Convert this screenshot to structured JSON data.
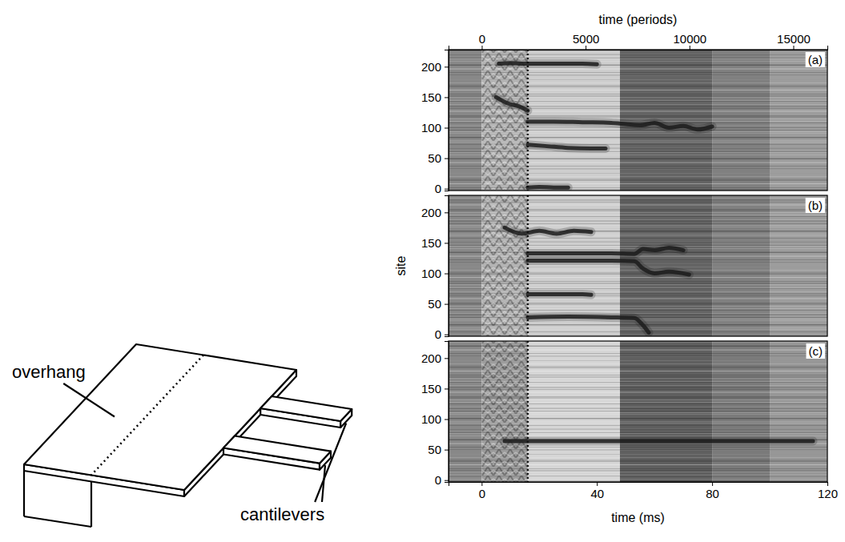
{
  "chart_data": [
    {
      "type": "spacetime",
      "label": "(a)",
      "x2label": "time (periods)",
      "xlim": [
        -11.5,
        120
      ],
      "x2lim": [
        -1600,
        16640
      ],
      "x2ticks": [
        0,
        5000,
        10000,
        15000
      ],
      "ylim": [
        -3,
        228
      ],
      "yticks": [
        0,
        50,
        100,
        150,
        200
      ],
      "vline": 16,
      "bands": {
        "edges": [
          -11.5,
          0,
          16,
          48,
          80,
          100,
          120
        ],
        "values": [
          0.55,
          0.4,
          0.3,
          0.68,
          0.58,
          0.48
        ]
      },
      "tracks": [
        {
          "t": [
            6,
            10,
            16,
            25,
            35,
            40
          ],
          "site": [
            205,
            206,
            205,
            205,
            205,
            204
          ],
          "color": "#1c1c1c"
        },
        {
          "t": [
            16,
            25,
            35,
            45,
            50,
            55,
            60,
            65,
            70,
            75,
            80
          ],
          "site": [
            110,
            110,
            109,
            108,
            106,
            104,
            108,
            100,
            103,
            97,
            102
          ],
          "color": "#1c1c1c"
        },
        {
          "t": [
            16,
            22,
            30,
            38,
            43
          ],
          "site": [
            72,
            70,
            67,
            66,
            66
          ],
          "color": "#1c1c1c"
        },
        {
          "t": [
            16,
            20,
            25,
            30
          ],
          "site": [
            2,
            3,
            2,
            2
          ],
          "color": "#1c1c1c"
        },
        {
          "t": [
            5,
            9,
            13,
            16
          ],
          "site": [
            150,
            140,
            135,
            128
          ],
          "color": "#1c1c1c"
        }
      ]
    },
    {
      "type": "spacetime",
      "label": "(b)",
      "ylabel": "site",
      "xlim": [
        -11.5,
        120
      ],
      "ylim": [
        -3,
        228
      ],
      "yticks": [
        0,
        50,
        100,
        150,
        200
      ],
      "vline": 16,
      "bands": {
        "edges": [
          -11.5,
          0,
          16,
          48,
          80,
          100,
          120
        ],
        "values": [
          0.55,
          0.4,
          0.3,
          0.68,
          0.58,
          0.48
        ]
      },
      "tracks": [
        {
          "t": [
            8,
            14,
            20,
            26,
            32,
            38
          ],
          "site": [
            175,
            165,
            170,
            165,
            170,
            168
          ],
          "color": "#1c1c1c"
        },
        {
          "t": [
            16,
            30,
            45,
            53,
            56,
            60,
            65,
            70
          ],
          "site": [
            133,
            133,
            133,
            132,
            140,
            138,
            142,
            138
          ],
          "color": "#1c1c1c"
        },
        {
          "t": [
            16,
            30,
            45,
            53,
            56,
            60,
            65,
            72
          ],
          "site": [
            121,
            121,
            121,
            120,
            108,
            100,
            103,
            98
          ],
          "color": "#1c1c1c"
        },
        {
          "t": [
            16,
            25,
            35,
            38
          ],
          "site": [
            66,
            66,
            66,
            65
          ],
          "color": "#1c1c1c"
        },
        {
          "t": [
            16,
            30,
            45,
            53,
            56,
            58
          ],
          "site": [
            28,
            29,
            28,
            27,
            15,
            3
          ],
          "color": "#1c1c1c"
        }
      ]
    },
    {
      "type": "spacetime",
      "label": "(c)",
      "xlabel": "time (ms)",
      "xlim": [
        -11.5,
        120
      ],
      "xticks": [
        0,
        40,
        80,
        120
      ],
      "ylim": [
        -3,
        228
      ],
      "yticks": [
        0,
        50,
        100,
        150,
        200
      ],
      "vline": 16,
      "bands": {
        "edges": [
          -11.5,
          0,
          16,
          48,
          80,
          100,
          120
        ],
        "values": [
          0.55,
          0.48,
          0.26,
          0.7,
          0.6,
          0.5
        ]
      },
      "tracks": [
        {
          "t": [
            8,
            20,
            40,
            48,
            60,
            80,
            100,
            115
          ],
          "site": [
            64,
            64,
            64,
            64,
            64,
            64,
            64,
            64
          ],
          "color": "#1c1c1c"
        }
      ]
    }
  ],
  "diagram": {
    "labels": [
      "overhang",
      "cantilevers"
    ]
  }
}
